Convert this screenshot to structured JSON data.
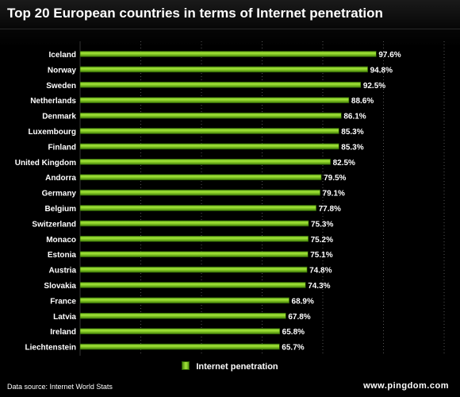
{
  "title": "Top 20 European countries in terms of Internet penetration",
  "legend_label": "Internet penetration",
  "source": "Data source: Internet World Stats",
  "brand": "www.pingdom.com",
  "colors": {
    "bar_light": "#a4e63a",
    "bar_dark": "#4e8d10",
    "background": "#000000",
    "grid": "#555555"
  },
  "chart_data": {
    "type": "bar",
    "orientation": "horizontal",
    "title": "Top 20 European countries in terms of Internet penetration",
    "categories": [
      "Iceland",
      "Norway",
      "Sweden",
      "Netherlands",
      "Denmark",
      "Luxembourg",
      "Finland",
      "United Kingdom",
      "Andorra",
      "Germany",
      "Belgium",
      "Switzerland",
      "Monaco",
      "Estonia",
      "Austria",
      "Slovakia",
      "France",
      "Latvia",
      "Ireland",
      "Liechtenstein"
    ],
    "series": [
      {
        "name": "Internet penetration",
        "values": [
          97.6,
          94.8,
          92.5,
          88.6,
          86.1,
          85.3,
          85.3,
          82.5,
          79.5,
          79.1,
          77.8,
          75.3,
          75.2,
          75.1,
          74.8,
          74.3,
          68.9,
          67.8,
          65.8,
          65.7
        ]
      }
    ],
    "value_labels": [
      "97.6%",
      "94.8%",
      "92.5%",
      "88.6%",
      "86.1%",
      "85.3%",
      "85.3%",
      "82.5%",
      "79.5%",
      "79.1%",
      "77.8%",
      "75.3%",
      "75.2%",
      "75.1%",
      "74.8%",
      "74.3%",
      "68.9%",
      "67.8%",
      "65.8%",
      "65.7%"
    ],
    "xlim": [
      0,
      120
    ],
    "grid": true,
    "legend_position": "bottom"
  }
}
